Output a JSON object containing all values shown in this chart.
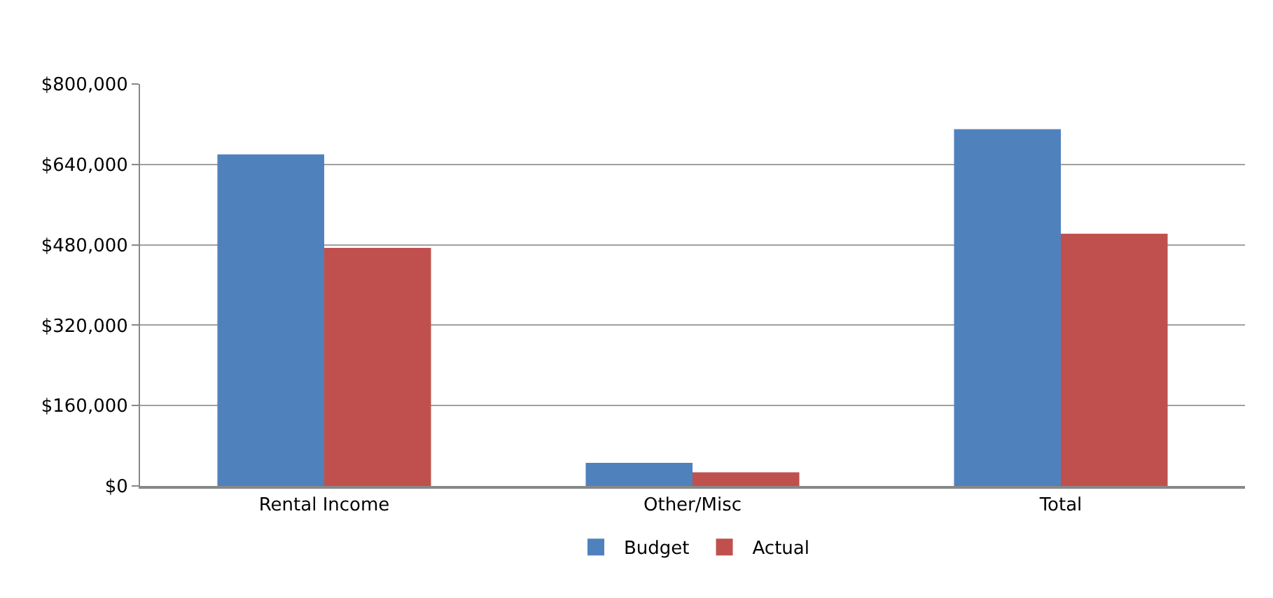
{
  "chart_data": {
    "type": "bar",
    "categories": [
      "Rental Income",
      "Other/Misc",
      "Total"
    ],
    "series": [
      {
        "name": "Budget",
        "color": "#4f81bd",
        "values": [
          660000,
          46000,
          710000
        ]
      },
      {
        "name": "Actual",
        "color": "#c0504d",
        "values": [
          474000,
          27000,
          502000
        ]
      }
    ],
    "ylim": [
      0,
      800000
    ],
    "yticks": [
      {
        "value": 0,
        "label": "$0"
      },
      {
        "value": 160000,
        "label": "$160,000"
      },
      {
        "value": 320000,
        "label": "$320,000"
      },
      {
        "value": 480000,
        "label": "$480,000"
      },
      {
        "value": 640000,
        "label": "$640,000"
      },
      {
        "value": 800000,
        "label": "$800,000"
      }
    ],
    "grid": "y",
    "legend": "bottom"
  }
}
